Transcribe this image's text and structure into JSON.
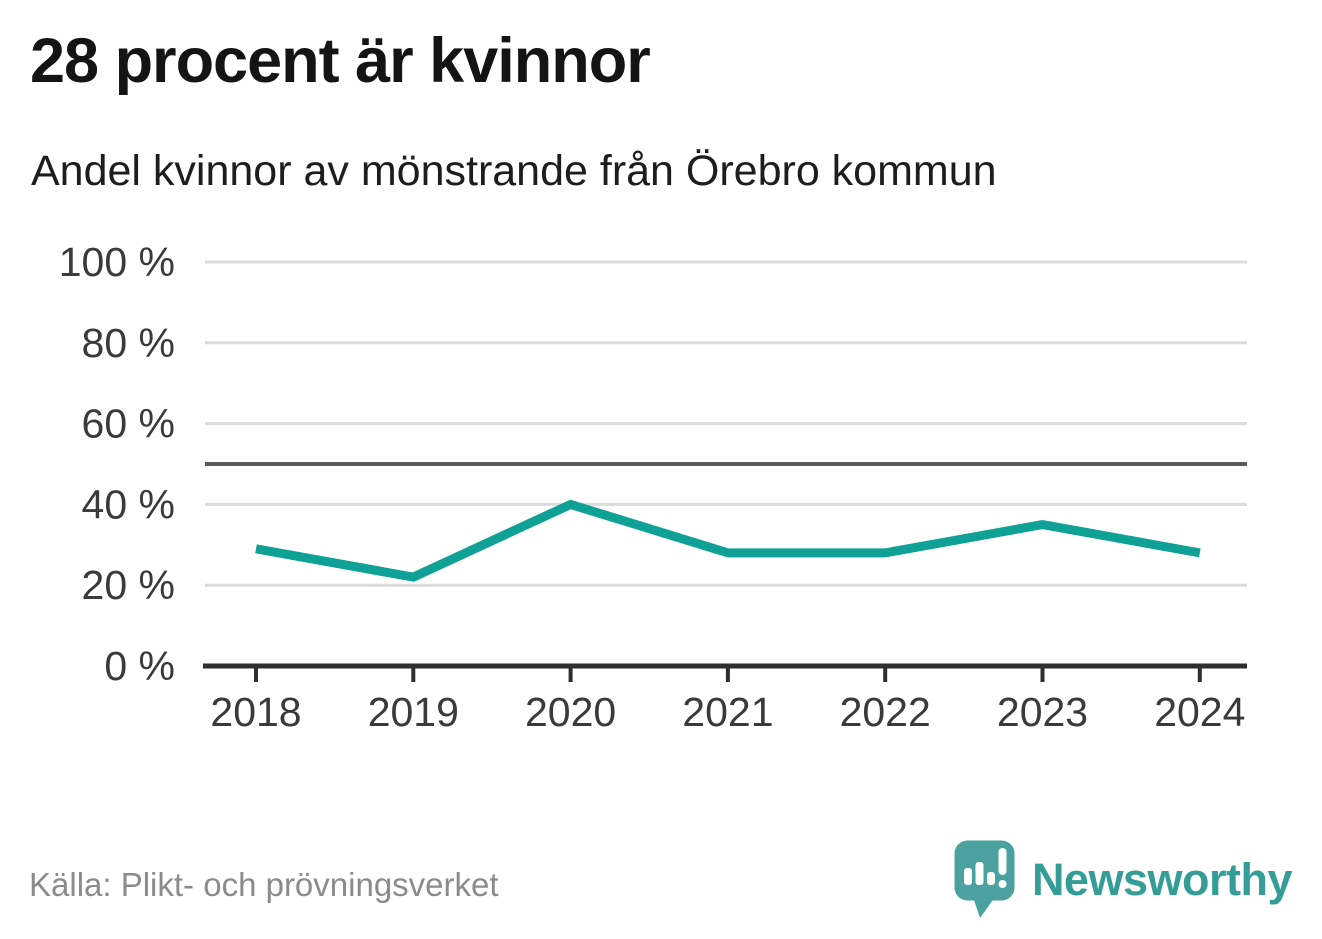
{
  "chart_data": {
    "type": "line",
    "title": "28 procent är kvinnor",
    "subtitle": "Andel kvinnor av mönstrande från Örebro kommun",
    "x": [
      "2018",
      "2019",
      "2020",
      "2021",
      "2022",
      "2023",
      "2024"
    ],
    "series": [
      {
        "values": [
          29,
          22,
          40,
          28,
          28,
          35,
          28
        ]
      }
    ],
    "unit": "%",
    "ylim": [
      0,
      100
    ],
    "yticks": [
      {
        "value": 0,
        "label": "0 %"
      },
      {
        "value": 20,
        "label": "20 %"
      },
      {
        "value": 40,
        "label": "40 %"
      },
      {
        "value": 60,
        "label": "60 %"
      },
      {
        "value": 80,
        "label": "80 %"
      },
      {
        "value": 100,
        "label": "100 %"
      }
    ],
    "reference_line": {
      "value": 50
    },
    "grid": true,
    "legend": "none",
    "colors": {
      "line": "#0fa096",
      "grid": "#dcdcdc",
      "axis": "#2e2e2e",
      "reference": "#595a5c",
      "tick_text": "#3a3a3a"
    }
  },
  "footer": {
    "source": "Källa: Plikt- och prövningsverket",
    "brand": "Newsworthy",
    "brand_color": "#359d97",
    "logo_color": "#4aa1a0"
  }
}
